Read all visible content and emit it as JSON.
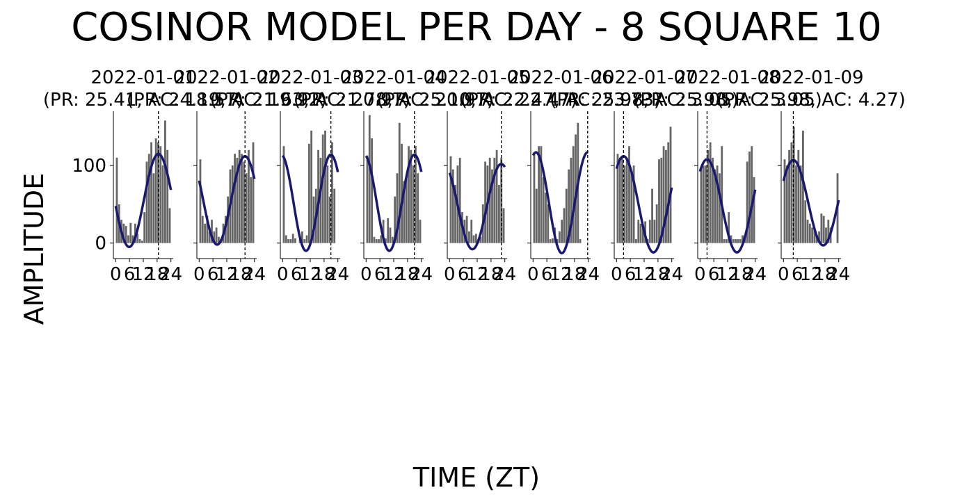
{
  "figure": {
    "title": "COSINOR MODEL PER DAY - 8 SQUARE 10",
    "xlabel": "TIME (ZT)",
    "ylabel": "AMPLITUDE"
  },
  "chart_data": {
    "type": "bar+line",
    "title": "COSINOR MODEL PER DAY - 8 SQUARE 10",
    "xlabel": "TIME (ZT)",
    "ylabel": "AMPLITUDE",
    "xlim": [
      -1,
      25
    ],
    "ylim": [
      -20,
      170
    ],
    "xticks": [
      0,
      6,
      12,
      18,
      24
    ],
    "yticks": [
      0,
      100
    ],
    "bar_color": "#666666",
    "fit_color": "#191970",
    "acrophase_line_color": "#000000",
    "panels": [
      {
        "date": "2022-01-01",
        "subtitle": "(PR: 25.41, AC: 18.57)",
        "period": 25.41,
        "acrophase": 18.57,
        "mesor": 55,
        "amplitude": 60,
        "bars": [
          110,
          50,
          30,
          25,
          22,
          10,
          26,
          10,
          25,
          12,
          5,
          3,
          40,
          105,
          115,
          130,
          90,
          135,
          130,
          125,
          100,
          158,
          120,
          45
        ]
      },
      {
        "date": "2022-01-02",
        "subtitle": "(PR: 24.19, AC: 19.92)",
        "period": 24.19,
        "acrophase": 19.92,
        "mesor": 55,
        "amplitude": 57,
        "bars": [
          108,
          35,
          25,
          35,
          15,
          30,
          15,
          20,
          8,
          5,
          25,
          35,
          60,
          95,
          100,
          115,
          110,
          120,
          115,
          105,
          90,
          120,
          85,
          130
        ]
      },
      {
        "date": "2022-01-03",
        "subtitle": "(PR: 21.63, AC: 20.97)",
        "period": 21.63,
        "acrophase": 20.97,
        "mesor": 52,
        "amplitude": 62,
        "bars": [
          125,
          10,
          5,
          5,
          12,
          6,
          0,
          5,
          15,
          5,
          10,
          128,
          145,
          60,
          70,
          120,
          110,
          140,
          145,
          100,
          60,
          130,
          70,
          0
        ]
      },
      {
        "date": "2022-01-04",
        "subtitle": "(PR: 21.78, AC: 20.97)",
        "period": 21.78,
        "acrophase": 20.97,
        "mesor": 52,
        "amplitude": 62,
        "bars": [
          113,
          165,
          135,
          8,
          5,
          5,
          10,
          30,
          6,
          32,
          20,
          8,
          60,
          90,
          155,
          128,
          80,
          85,
          125,
          120,
          100,
          125,
          90,
          30
        ]
      },
      {
        "date": "2022-01-05",
        "subtitle": "(PR: 25.10, AC: 22.47)",
        "period": 25.1,
        "acrophase": 22.47,
        "mesor": 47,
        "amplitude": 55,
        "bars": [
          112,
          95,
          75,
          100,
          110,
          40,
          30,
          35,
          15,
          30,
          10,
          12,
          5,
          8,
          50,
          105,
          100,
          110,
          95,
          110,
          120,
          75,
          110,
          45
        ]
      },
      {
        "date": "2022-01-06",
        "subtitle": "(PR: 22.47, AC: 23.73)",
        "period": 22.47,
        "acrophase": 23.73,
        "mesor": 52,
        "amplitude": 65,
        "bars": [
          115,
          70,
          125,
          125,
          85,
          65,
          50,
          5,
          6,
          20,
          5,
          15,
          30,
          45,
          70,
          95,
          110,
          125,
          140,
          155,
          5,
          0,
          0,
          0
        ]
      },
      {
        "date": "2022-01-07",
        "subtitle": "(PR: 25.98, AC: 3.05)",
        "period": 25.98,
        "acrophase": 3.05,
        "mesor": 50,
        "amplitude": 62,
        "bars": [
          115,
          110,
          110,
          100,
          110,
          125,
          90,
          100,
          5,
          30,
          25,
          20,
          28,
          5,
          30,
          70,
          30,
          50,
          108,
          110,
          125,
          120,
          130,
          150
        ]
      },
      {
        "date": "2022-01-08",
        "subtitle": "(PR: 25.98, AC: 3.05)",
        "period": 25.98,
        "acrophase": 3.05,
        "mesor": 48,
        "amplitude": 60,
        "bars": [
          95,
          100,
          100,
          120,
          130,
          110,
          95,
          100,
          90,
          125,
          5,
          5,
          40,
          10,
          5,
          5,
          5,
          5,
          10,
          10,
          105,
          118,
          125,
          85
        ]
      },
      {
        "date": "2022-01-09",
        "subtitle": "(PR: 25.98, AC: 4.27)",
        "period": 25.98,
        "acrophase": 4.27,
        "mesor": 52,
        "amplitude": 55,
        "bars": [
          108,
          100,
          120,
          130,
          150,
          100,
          120,
          100,
          145,
          55,
          30,
          25,
          20,
          18,
          10,
          15,
          38,
          35,
          20,
          30,
          20,
          0,
          0,
          90
        ]
      }
    ]
  }
}
